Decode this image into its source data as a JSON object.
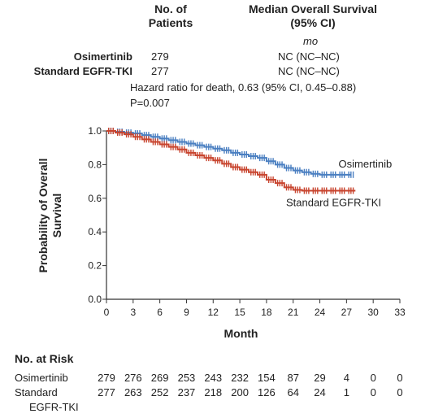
{
  "header": {
    "col_patients": [
      "No. of",
      "Patients"
    ],
    "col_median": [
      "Median Overall Survival",
      "(95% CI)"
    ],
    "unit": "mo"
  },
  "groups": [
    {
      "name": "Osimertinib",
      "patients": "279",
      "median": "NC (NC–NC)"
    },
    {
      "name": "Standard EGFR-TKI",
      "patients": "277",
      "median": "NC (NC–NC)"
    }
  ],
  "hazard_text": "Hazard ratio for death, 0.63 (95% CI, 0.45–0.88)",
  "p_text": "P=0.007",
  "chart_data": {
    "type": "line",
    "title": "",
    "xlabel": "Month",
    "ylabel": "Probability of Overall Survival",
    "ylabel_lines": [
      "Probability of Overall",
      "Survival"
    ],
    "xlim": [
      0,
      33
    ],
    "ylim": [
      0,
      1.0
    ],
    "xticks": [
      0,
      3,
      6,
      9,
      12,
      15,
      18,
      21,
      24,
      27,
      30,
      33
    ],
    "yticks": [
      0,
      0.2,
      0.4,
      0.6,
      0.8,
      1.0
    ],
    "ytick_labels": [
      "0.0",
      "0.2",
      "0.4",
      "0.6",
      "0.8",
      "1.0"
    ],
    "grid": false,
    "series": [
      {
        "name": "Osimertinib",
        "color": "#4a7fc1",
        "x": [
          0,
          1,
          2,
          3,
          4,
          5,
          6,
          7,
          8,
          9,
          10,
          11,
          12,
          13,
          14,
          15,
          16,
          17,
          18,
          19,
          20,
          21,
          22,
          23,
          24,
          25,
          26,
          27,
          27.5
        ],
        "y": [
          1.0,
          0.995,
          0.99,
          0.985,
          0.975,
          0.965,
          0.955,
          0.945,
          0.935,
          0.925,
          0.915,
          0.905,
          0.895,
          0.885,
          0.87,
          0.86,
          0.85,
          0.84,
          0.82,
          0.8,
          0.78,
          0.765,
          0.755,
          0.745,
          0.74,
          0.74,
          0.74,
          0.74,
          0.74
        ]
      },
      {
        "name": "Standard EGFR-TKI",
        "color": "#c8452f",
        "x": [
          0,
          1,
          2,
          3,
          4,
          5,
          6,
          7,
          8,
          9,
          10,
          11,
          12,
          13,
          14,
          15,
          16,
          17,
          18,
          19,
          20,
          21,
          22,
          23,
          24,
          25,
          26,
          27,
          28
        ],
        "y": [
          1.0,
          0.99,
          0.98,
          0.965,
          0.95,
          0.935,
          0.92,
          0.905,
          0.89,
          0.87,
          0.855,
          0.84,
          0.825,
          0.805,
          0.785,
          0.77,
          0.755,
          0.74,
          0.71,
          0.69,
          0.665,
          0.65,
          0.645,
          0.645,
          0.645,
          0.645,
          0.645,
          0.645,
          0.645
        ]
      }
    ]
  },
  "risk_table": {
    "title": "No. at Risk",
    "rows": [
      {
        "label": [
          "Osimertinib"
        ],
        "values": [
          "279",
          "276",
          "269",
          "253",
          "243",
          "232",
          "154",
          "87",
          "29",
          "4",
          "0",
          "0"
        ]
      },
      {
        "label": [
          "Standard",
          "EGFR-TKI"
        ],
        "values": [
          "277",
          "263",
          "252",
          "237",
          "218",
          "200",
          "126",
          "64",
          "24",
          "1",
          "0",
          "0"
        ]
      }
    ]
  }
}
